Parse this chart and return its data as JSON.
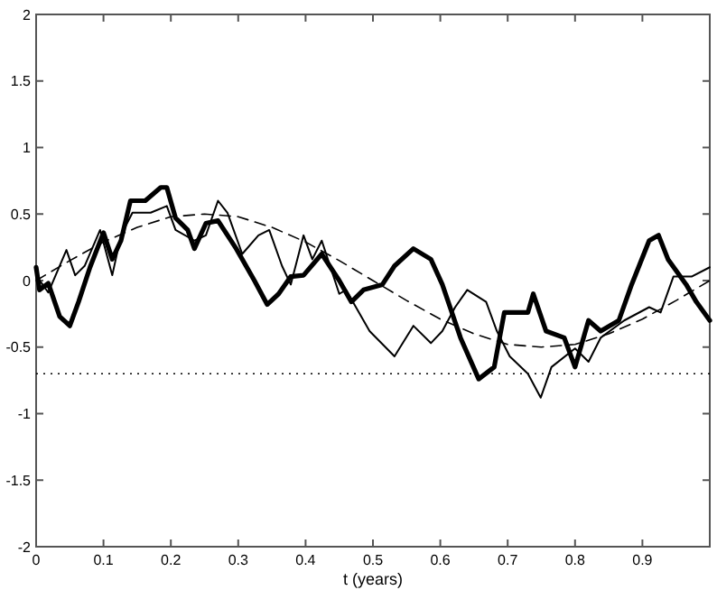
{
  "chart_data": {
    "type": "line",
    "xlabel": "t (years)",
    "xlim": [
      0,
      1
    ],
    "ylim": [
      -2,
      2
    ],
    "xticks": [
      0,
      0.1,
      0.2,
      0.3,
      0.4,
      0.5,
      0.6,
      0.7,
      0.8,
      0.9
    ],
    "yticks": [
      -2,
      -1.5,
      -1,
      -0.5,
      0,
      0.5,
      1,
      1.5,
      2
    ],
    "grid": false,
    "marker": "none",
    "ref_lines": [
      {
        "axis": "y",
        "value": -0.7,
        "color": "#000000",
        "line_style": "dotted"
      }
    ],
    "series": [
      {
        "color": "#000000",
        "line_style": "solid",
        "x": [
          0,
          0.005,
          0.018,
          0.035,
          0.05,
          0.063,
          0.08,
          0.1,
          0.113,
          0.126,
          0.14,
          0.162,
          0.185,
          0.194,
          0.207,
          0.225,
          0.235,
          0.252,
          0.27,
          0.297,
          0.324,
          0.343,
          0.36,
          0.378,
          0.397,
          0.424,
          0.45,
          0.468,
          0.486,
          0.514,
          0.532,
          0.56,
          0.586,
          0.603,
          0.63,
          0.657,
          0.68,
          0.695,
          0.73,
          0.738,
          0.757,
          0.784,
          0.8,
          0.82,
          0.838,
          0.865,
          0.884,
          0.91,
          0.924,
          0.938,
          0.965,
          0.98,
          1
        ],
        "values": [
          0.1,
          -0.07,
          -0.02,
          -0.27,
          -0.34,
          -0.16,
          0.1,
          0.36,
          0.16,
          0.3,
          0.6,
          0.6,
          0.7,
          0.7,
          0.47,
          0.38,
          0.24,
          0.43,
          0.45,
          0.24,
          0,
          -0.18,
          -0.1,
          0.03,
          0.04,
          0.2,
          0,
          -0.16,
          -0.07,
          -0.03,
          0.11,
          0.24,
          0.16,
          -0.03,
          -0.43,
          -0.74,
          -0.65,
          -0.24,
          -0.24,
          -0.1,
          -0.38,
          -0.43,
          -0.65,
          -0.3,
          -0.38,
          -0.3,
          -0.03,
          0.3,
          0.34,
          0.16,
          -0.03,
          -0.16,
          -0.3
        ]
      },
      {
        "color": "#000000",
        "line_style": "solid",
        "x": [
          0,
          0.018,
          0.045,
          0.058,
          0.072,
          0.095,
          0.113,
          0.126,
          0.143,
          0.17,
          0.194,
          0.207,
          0.235,
          0.252,
          0.27,
          0.284,
          0.306,
          0.33,
          0.346,
          0.365,
          0.378,
          0.397,
          0.41,
          0.424,
          0.45,
          0.46,
          0.495,
          0.532,
          0.56,
          0.586,
          0.603,
          0.622,
          0.64,
          0.668,
          0.684,
          0.703,
          0.73,
          0.749,
          0.765,
          0.8,
          0.82,
          0.838,
          0.873,
          0.91,
          0.927,
          0.946,
          0.973,
          1
        ],
        "values": [
          0.04,
          -0.09,
          0.23,
          0.04,
          0.11,
          0.38,
          0.04,
          0.34,
          0.51,
          0.51,
          0.56,
          0.38,
          0.3,
          0.34,
          0.6,
          0.51,
          0.2,
          0.34,
          0.38,
          0.11,
          -0.03,
          0.34,
          0.16,
          0.3,
          -0.1,
          -0.07,
          -0.38,
          -0.57,
          -0.34,
          -0.47,
          -0.38,
          -0.2,
          -0.07,
          -0.16,
          -0.38,
          -0.57,
          -0.7,
          -0.88,
          -0.65,
          -0.51,
          -0.61,
          -0.43,
          -0.3,
          -0.2,
          -0.24,
          0.03,
          0.03,
          0.1
        ]
      },
      {
        "color": "#000000",
        "line_style": "dashed",
        "x": [
          0,
          0.05,
          0.1,
          0.15,
          0.2,
          0.25,
          0.3,
          0.35,
          0.4,
          0.45,
          0.5,
          0.55,
          0.6,
          0.65,
          0.7,
          0.75,
          0.8,
          0.85,
          0.9,
          0.95,
          1
        ],
        "values": [
          0,
          0.15,
          0.29,
          0.4,
          0.48,
          0.5,
          0.48,
          0.4,
          0.29,
          0.15,
          0,
          -0.15,
          -0.29,
          -0.4,
          -0.48,
          -0.5,
          -0.48,
          -0.4,
          -0.29,
          -0.15,
          0
        ]
      }
    ]
  }
}
